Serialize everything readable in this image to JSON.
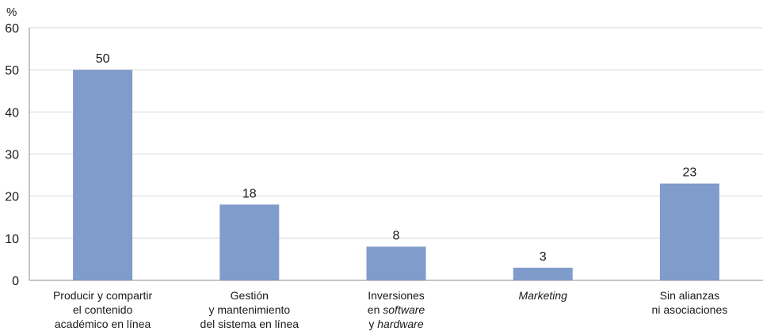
{
  "chart_data": {
    "type": "bar",
    "ylabel": "%",
    "ylim": [
      0,
      60
    ],
    "yticks": [
      0,
      10,
      20,
      30,
      40,
      50,
      60
    ],
    "grid": true,
    "colors": {
      "bar": "#7f9ccb",
      "grid": "#d9d9d9",
      "axis": "#8c8c8c"
    },
    "categories": [
      "Producir y compartir el contenido académico en línea",
      "Gestión y mantenimiento del sistema en línea",
      "Inversiones en software y hardware",
      "Marketing",
      "Sin alianzas ni asociaciones"
    ],
    "category_lines": [
      [
        [
          {
            "t": "Producir y compartir",
            "i": false
          }
        ],
        [
          {
            "t": "el contenido",
            "i": false
          }
        ],
        [
          {
            "t": "académico en línea",
            "i": false
          }
        ]
      ],
      [
        [
          {
            "t": "Gestión",
            "i": false
          }
        ],
        [
          {
            "t": "y mantenimiento",
            "i": false
          }
        ],
        [
          {
            "t": "del sistema en línea",
            "i": false
          }
        ]
      ],
      [
        [
          {
            "t": "Inversiones",
            "i": false
          }
        ],
        [
          {
            "t": "en ",
            "i": false
          },
          {
            "t": "software",
            "i": true
          }
        ],
        [
          {
            "t": "y ",
            "i": false
          },
          {
            "t": "hardware",
            "i": true
          }
        ]
      ],
      [
        [
          {
            "t": "Marketing",
            "i": true
          }
        ]
      ],
      [
        [
          {
            "t": "Sin alianzas",
            "i": false
          }
        ],
        [
          {
            "t": "ni asociaciones",
            "i": false
          }
        ]
      ]
    ],
    "values": [
      50,
      18,
      8,
      3,
      23
    ],
    "value_labels": [
      "50",
      "18",
      "8",
      "3",
      "23"
    ]
  }
}
